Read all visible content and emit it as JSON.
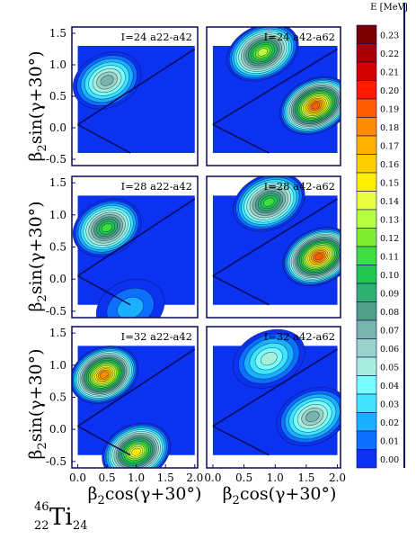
{
  "figure": {
    "nucleus": {
      "mass": "46",
      "charge": "22",
      "symbol": "Ti",
      "neutrons": "24"
    },
    "colorbar_title": "E [MeV]",
    "x_axis_label_main": "β",
    "x_axis_label_sub": "2",
    "x_axis_label_rest": "cos(γ+30°)",
    "y_axis_label_main": "β",
    "y_axis_label_sub": "2",
    "y_axis_label_rest": "sin(γ+30°)",
    "x_ticks": [
      "0.0",
      "0.5",
      "1.0",
      "1.5",
      "2.0"
    ],
    "y_ticks": [
      "1.5",
      "1.0",
      "0.5",
      "0.0",
      "-0.5"
    ]
  },
  "chart_data": {
    "type": "heatmap",
    "subtype": "contour maps (6 panels)",
    "xlim": [
      -0.1,
      2.05
    ],
    "ylim": [
      -0.6,
      1.6
    ],
    "colorbar": {
      "label": "E [MeV]",
      "levels": [
        "0.23",
        "0.22",
        "0.21",
        "0.20",
        "0.19",
        "0.18",
        "0.17",
        "0.16",
        "0.15",
        "0.14",
        "0.13",
        "0.12",
        "0.11",
        "0.10",
        "0.09",
        "0.08",
        "0.07",
        "0.06",
        "0.05",
        "0.04",
        "0.03",
        "0.02",
        "0.01",
        "0.00"
      ],
      "colors": [
        "#7a0000",
        "#a80000",
        "#d40000",
        "#ff1a00",
        "#ff5a00",
        "#ff8c00",
        "#ffb000",
        "#ffd000",
        "#ffee00",
        "#e8ff40",
        "#b8ff40",
        "#80ee30",
        "#40dd40",
        "#20c850",
        "#30b070",
        "#50a088",
        "#78b4aa",
        "#98d2c8",
        "#a8eedd",
        "#78ffff",
        "#40e4ff",
        "#1ab0ff",
        "#0c70ff",
        "#0a32f0"
      ]
    },
    "panels": [
      {
        "label": "I=24 a22-a42",
        "features": [
          {
            "x": 0.5,
            "y": 0.75,
            "peak": 0.07
          }
        ]
      },
      {
        "label": "I=24 a42-a62",
        "features": [
          {
            "x": 0.8,
            "y": 1.2,
            "peak": 0.13
          },
          {
            "x": 1.65,
            "y": 0.35,
            "peak": 0.19
          }
        ]
      },
      {
        "label": "I=28 a22-a42",
        "features": [
          {
            "x": 0.5,
            "y": 0.8,
            "peak": 0.11
          },
          {
            "x": 0.9,
            "y": -0.45,
            "peak": 0.02
          }
        ]
      },
      {
        "label": "I=28 a42-a62",
        "features": [
          {
            "x": 0.9,
            "y": 1.2,
            "peak": 0.11
          },
          {
            "x": 1.7,
            "y": 0.35,
            "peak": 0.19
          }
        ]
      },
      {
        "label": "I=32 a22-a42",
        "features": [
          {
            "x": 0.45,
            "y": 0.85,
            "peak": 0.18
          },
          {
            "x": 1.0,
            "y": -0.35,
            "peak": 0.15
          }
        ]
      },
      {
        "label": "I=32 a42-a62",
        "features": [
          {
            "x": 0.9,
            "y": 1.1,
            "peak": 0.05
          },
          {
            "x": 1.6,
            "y": 0.2,
            "peak": 0.07
          }
        ]
      }
    ]
  }
}
